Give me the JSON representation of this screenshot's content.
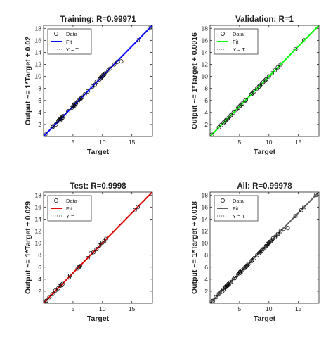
{
  "figure": {
    "background": "#ffffff"
  },
  "chart_data": [
    {
      "type": "scatter",
      "title": "Training: R=0.99971",
      "xlabel": "Target",
      "ylabel": "Output ~= 1*Target + 0.02",
      "fit_color": "#0000ff",
      "xlim": [
        0,
        18.5
      ],
      "ylim": [
        0,
        18.5
      ],
      "x_ticks": [
        5,
        10,
        15
      ],
      "y_ticks": [
        2,
        4,
        6,
        8,
        10,
        12,
        14,
        16,
        18
      ],
      "legend": [
        "Data",
        "Fit",
        "Y = T"
      ],
      "legend_position": "top-left",
      "series": [
        {
          "name": "Data",
          "marker": "circle",
          "x": [
            0.3,
            1.5,
            1.6,
            2.1,
            2.5,
            2.6,
            2.8,
            2.8,
            3.0,
            3.1,
            3.2,
            3.3,
            4.2,
            4.8,
            5.0,
            5.1,
            5.2,
            5.3,
            5.5,
            5.8,
            6.0,
            6.2,
            6.3,
            6.5,
            7.0,
            7.5,
            8.3,
            8.7,
            9.0,
            9.5,
            9.7,
            9.8,
            10.0,
            10.1,
            10.3,
            10.5,
            10.7,
            11.0,
            11.3,
            12.0,
            12.5,
            13.2,
            16.0,
            18.0
          ],
          "y": [
            0.3,
            1.5,
            1.7,
            2.0,
            2.6,
            2.7,
            2.7,
            2.9,
            3.0,
            3.2,
            3.1,
            3.4,
            4.2,
            4.8,
            5.0,
            5.2,
            5.1,
            5.4,
            5.5,
            5.8,
            6.1,
            6.2,
            6.3,
            6.5,
            7.0,
            7.5,
            8.3,
            8.6,
            9.1,
            9.5,
            9.7,
            9.9,
            10.0,
            10.2,
            10.3,
            10.5,
            10.8,
            11.0,
            11.3,
            12.0,
            12.4,
            12.5,
            16.0,
            18.0
          ]
        },
        {
          "name": "Fit",
          "line": "solid",
          "x": [
            0,
            18.5
          ],
          "y": [
            0.02,
            18.52
          ]
        },
        {
          "name": "Y = T",
          "line": "dotted",
          "x": [
            0,
            18.5
          ],
          "y": [
            0,
            18.5
          ]
        }
      ]
    },
    {
      "type": "scatter",
      "title": "Validation: R=1",
      "xlabel": "Target",
      "ylabel": "Output ~= 1*Target + 0.0016",
      "fit_color": "#00ff00",
      "xlim": [
        0,
        18.5
      ],
      "ylim": [
        0,
        18.5
      ],
      "x_ticks": [
        5,
        10,
        15
      ],
      "y_ticks": [
        2,
        4,
        6,
        8,
        10,
        12,
        14,
        16,
        18
      ],
      "legend": [
        "Data",
        "Fit",
        "Y = T"
      ],
      "legend_position": "top-left",
      "series": [
        {
          "name": "Data",
          "marker": "circle",
          "x": [
            0.3,
            1.5,
            1.9,
            2.3,
            2.5,
            2.7,
            2.9,
            3.0,
            3.3,
            3.5,
            4.0,
            4.5,
            4.8,
            5.0,
            5.2,
            5.5,
            6.0,
            6.1,
            7.0,
            7.2,
            7.5,
            8.0,
            8.3,
            8.5,
            8.8,
            9.0,
            9.3,
            9.5,
            10.0,
            10.5,
            11.0,
            11.5,
            12.0,
            14.5,
            16.0
          ],
          "y": [
            0.3,
            1.5,
            1.9,
            2.3,
            2.5,
            2.7,
            2.9,
            3.0,
            3.3,
            3.5,
            4.0,
            4.5,
            4.8,
            5.0,
            5.2,
            5.5,
            6.0,
            6.1,
            7.0,
            7.2,
            7.5,
            8.0,
            8.3,
            8.5,
            8.8,
            9.0,
            9.3,
            9.5,
            10.0,
            10.5,
            11.0,
            11.5,
            12.0,
            14.5,
            16.0
          ]
        },
        {
          "name": "Fit",
          "line": "solid",
          "x": [
            0,
            18.5
          ],
          "y": [
            0.0016,
            18.5016
          ]
        },
        {
          "name": "Y = T",
          "line": "dotted",
          "x": [
            0,
            18.5
          ],
          "y": [
            0,
            18.5
          ]
        }
      ]
    },
    {
      "type": "scatter",
      "title": "Test: R=0.9998",
      "xlabel": "Target",
      "ylabel": "Output ~= 1*Target + 0.029",
      "fit_color": "#dd0000",
      "xlim": [
        0,
        18.5
      ],
      "ylim": [
        0,
        18.5
      ],
      "x_ticks": [
        5,
        10,
        15
      ],
      "y_ticks": [
        2,
        4,
        6,
        8,
        10,
        12,
        14,
        16,
        18
      ],
      "legend": [
        "Data",
        "Fit",
        "Y = T"
      ],
      "legend_position": "top-left",
      "series": [
        {
          "name": "Data",
          "marker": "circle",
          "x": [
            0.3,
            0.5,
            1.0,
            1.5,
            2.0,
            2.5,
            2.7,
            3.0,
            3.2,
            4.3,
            4.5,
            5.8,
            6.0,
            6.2,
            7.5,
            8.0,
            8.5,
            9.0,
            9.5,
            9.8,
            10.0,
            10.3,
            10.6,
            15.5,
            16.0
          ],
          "y": [
            0.3,
            0.4,
            1.0,
            1.5,
            2.1,
            2.5,
            2.8,
            3.0,
            3.2,
            4.3,
            4.6,
            5.8,
            6.0,
            6.2,
            7.5,
            8.3,
            8.5,
            9.0,
            9.6,
            9.8,
            10.1,
            10.3,
            10.7,
            15.5,
            16.0
          ]
        },
        {
          "name": "Fit",
          "line": "solid",
          "x": [
            0,
            18.5
          ],
          "y": [
            0.029,
            18.529
          ]
        },
        {
          "name": "Y = T",
          "line": "dotted",
          "x": [
            0,
            18.5
          ],
          "y": [
            0,
            18.5
          ]
        }
      ]
    },
    {
      "type": "scatter",
      "title": "All: R=0.99978",
      "xlabel": "Target",
      "ylabel": "Output ~= 1*Target + 0.018",
      "fit_color": "#606060",
      "xlim": [
        0,
        18.5
      ],
      "ylim": [
        0,
        18.5
      ],
      "x_ticks": [
        5,
        10,
        15
      ],
      "y_ticks": [
        2,
        4,
        6,
        8,
        10,
        12,
        14,
        16,
        18
      ],
      "legend": [
        "Data",
        "Fit",
        "Y = T"
      ],
      "legend_position": "top-left",
      "series": [
        {
          "name": "Data",
          "marker": "circle",
          "x": [
            0.3,
            0.5,
            1.0,
            1.5,
            1.6,
            1.9,
            2.1,
            2.3,
            2.5,
            2.6,
            2.7,
            2.8,
            2.9,
            3.0,
            3.1,
            3.2,
            3.3,
            3.5,
            4.0,
            4.2,
            4.5,
            4.8,
            5.0,
            5.1,
            5.2,
            5.3,
            5.5,
            5.8,
            6.0,
            6.1,
            6.2,
            6.3,
            6.5,
            7.0,
            7.2,
            7.5,
            8.0,
            8.3,
            8.5,
            8.7,
            8.8,
            9.0,
            9.3,
            9.5,
            9.7,
            9.8,
            10.0,
            10.1,
            10.3,
            10.5,
            10.7,
            11.0,
            11.3,
            11.5,
            12.0,
            12.5,
            13.2,
            14.5,
            15.5,
            16.0,
            18.0
          ],
          "y": [
            0.3,
            0.4,
            1.0,
            1.5,
            1.7,
            1.9,
            2.0,
            2.3,
            2.6,
            2.7,
            2.7,
            2.9,
            2.9,
            3.0,
            3.2,
            3.1,
            3.4,
            3.5,
            4.0,
            4.2,
            4.6,
            4.8,
            5.0,
            5.2,
            5.1,
            5.4,
            5.5,
            5.8,
            6.0,
            6.1,
            6.2,
            6.3,
            6.5,
            7.0,
            7.2,
            7.5,
            8.0,
            8.3,
            8.5,
            8.6,
            8.8,
            9.0,
            9.3,
            9.5,
            9.7,
            9.9,
            10.0,
            10.2,
            10.3,
            10.5,
            10.8,
            11.0,
            11.3,
            11.5,
            12.0,
            12.4,
            12.5,
            14.5,
            15.5,
            16.0,
            18.0
          ]
        },
        {
          "name": "Fit",
          "line": "solid",
          "x": [
            0,
            18.5
          ],
          "y": [
            0.018,
            18.518
          ]
        },
        {
          "name": "Y = T",
          "line": "dotted",
          "x": [
            0,
            18.5
          ],
          "y": [
            0,
            18.5
          ]
        }
      ]
    }
  ]
}
